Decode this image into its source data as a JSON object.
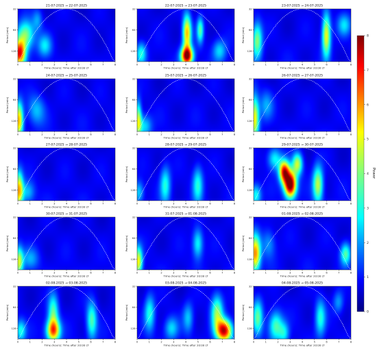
{
  "figure": {
    "colormap": "jet",
    "cone_of_influence": "white-dotted",
    "colorbar": {
      "label": "Power",
      "ticks": [
        "0",
        "1",
        "2",
        "3",
        "4",
        "5",
        "6",
        "7",
        "8"
      ],
      "vmin": 0,
      "vmax": 8,
      "placement": "right"
    }
  },
  "chart_data": [
    {
      "type": "heatmap",
      "title": "21-07-2025 → 22-07-2025",
      "xlabel": "Time (hours): Time after 20:00 LT",
      "ylabel": "Period (min)",
      "xticks": [
        "0",
        "1",
        "2",
        "3",
        "4",
        "5",
        "6",
        "7",
        "8"
      ],
      "yticks": [
        "32",
        "64",
        "128"
      ],
      "xlim": [
        0,
        8
      ],
      "blobs": [
        {
          "x": 0.1,
          "p": 0.85,
          "amp": 6.5,
          "sx": 0.35,
          "sy": 0.35
        },
        {
          "x": 0.6,
          "p": 0.5,
          "amp": 3.5,
          "sx": 0.5,
          "sy": 0.4
        },
        {
          "x": 2.2,
          "p": 0.7,
          "amp": 2,
          "sx": 0.4,
          "sy": 0.3
        },
        {
          "x": 1.6,
          "p": 0.2,
          "amp": 1.5,
          "sx": 0.3,
          "sy": 0.3
        }
      ]
    },
    {
      "type": "heatmap",
      "title": "22-07-2025 → 23-07-2025",
      "xlabel": "Time (hours): Time after 20:00 LT",
      "ylabel": "Period (min)",
      "xticks": [
        "0",
        "1",
        "2",
        "3",
        "4",
        "5",
        "6",
        "7",
        "8"
      ],
      "yticks": [
        "32",
        "64",
        "128"
      ],
      "xlim": [
        0,
        8
      ],
      "blobs": [
        {
          "x": 4.1,
          "p": 0.9,
          "amp": 7.5,
          "sx": 0.35,
          "sy": 0.25
        },
        {
          "x": 4.1,
          "p": 0.45,
          "amp": 5,
          "sx": 0.25,
          "sy": 0.5
        },
        {
          "x": 5.2,
          "p": 0.4,
          "amp": 3,
          "sx": 0.2,
          "sy": 0.35
        },
        {
          "x": 0.3,
          "p": 0.85,
          "amp": 2.5,
          "sx": 0.3,
          "sy": 0.3
        },
        {
          "x": 6.8,
          "p": 0.8,
          "amp": 2,
          "sx": 0.4,
          "sy": 0.3
        }
      ]
    },
    {
      "type": "heatmap",
      "title": "23-07-2025 → 24-07-2025",
      "xlabel": "Time (hours): Time after 20:00 LT",
      "ylabel": "Period (min)",
      "xticks": [
        "0",
        "1",
        "2",
        "3",
        "4",
        "5",
        "6",
        "7",
        "8"
      ],
      "yticks": [
        "32",
        "64",
        "128"
      ],
      "xlim": [
        0,
        8
      ],
      "blobs": [
        {
          "x": 6.0,
          "p": 0.5,
          "amp": 4.5,
          "sx": 0.25,
          "sy": 0.6
        },
        {
          "x": 0.25,
          "p": 0.6,
          "amp": 3.5,
          "sx": 0.3,
          "sy": 0.5
        },
        {
          "x": 7.5,
          "p": 0.3,
          "amp": 2,
          "sx": 0.4,
          "sy": 0.3
        }
      ]
    },
    {
      "type": "heatmap",
      "title": "24-07-2025 → 25-07-2025",
      "xlabel": "Time (hours): Time after 20:00 LT",
      "ylabel": "Period (min)",
      "xticks": [
        "0",
        "1",
        "2",
        "3",
        "4",
        "5",
        "6",
        "7",
        "8"
      ],
      "yticks": [
        "32",
        "64",
        "128"
      ],
      "xlim": [
        0,
        8
      ],
      "blobs": [
        {
          "x": 0.05,
          "p": 0.8,
          "amp": 5,
          "sx": 0.25,
          "sy": 0.5
        },
        {
          "x": 1.5,
          "p": 0.6,
          "amp": 1.8,
          "sx": 0.5,
          "sy": 0.4
        }
      ]
    },
    {
      "type": "heatmap",
      "title": "25-07-2025 → 26-07-2025",
      "xlabel": "Time (hours): Time after 20:00 LT",
      "ylabel": "Period (min)",
      "xticks": [
        "0",
        "1",
        "2",
        "3",
        "4",
        "5",
        "6",
        "7",
        "8"
      ],
      "yticks": [
        "32",
        "64",
        "128"
      ],
      "xlim": [
        0,
        8
      ],
      "blobs": [
        {
          "x": 0.05,
          "p": 0.8,
          "amp": 4,
          "sx": 0.2,
          "sy": 0.5
        },
        {
          "x": 0.6,
          "p": 0.9,
          "amp": 2,
          "sx": 0.4,
          "sy": 0.3
        }
      ]
    },
    {
      "type": "heatmap",
      "title": "26-07-2025 → 27-07-2025",
      "xlabel": "Time (hours): Time after 20:00 LT",
      "ylabel": "Period (min)",
      "xticks": [
        "0",
        "1",
        "2",
        "3",
        "4",
        "5",
        "6",
        "7",
        "8"
      ],
      "yticks": [
        "32",
        "64",
        "128"
      ],
      "xlim": [
        0,
        8
      ],
      "blobs": [
        {
          "x": 0.05,
          "p": 0.75,
          "amp": 4.5,
          "sx": 0.25,
          "sy": 0.6
        },
        {
          "x": 1.0,
          "p": 0.5,
          "amp": 1.5,
          "sx": 0.4,
          "sy": 0.4
        }
      ]
    },
    {
      "type": "heatmap",
      "title": "27-07-2025 → 28-07-2025",
      "xlabel": "Time (hours): Time after 20:00 LT",
      "ylabel": "Period (min)",
      "xticks": [
        "0",
        "1",
        "2",
        "3",
        "4",
        "5",
        "6",
        "7",
        "8"
      ],
      "yticks": [
        "32",
        "64",
        "128"
      ],
      "xlim": [
        0,
        8
      ],
      "blobs": [
        {
          "x": 0.05,
          "p": 0.8,
          "amp": 5,
          "sx": 0.25,
          "sy": 0.5
        },
        {
          "x": 0.8,
          "p": 0.85,
          "amp": 1.8,
          "sx": 0.4,
          "sy": 0.3
        }
      ]
    },
    {
      "type": "heatmap",
      "title": "28-07-2025 → 29-07-2025",
      "xlabel": "Time (hours): Time after 20:00 LT",
      "ylabel": "Period (min)",
      "xticks": [
        "0",
        "1",
        "2",
        "3",
        "4",
        "5",
        "6",
        "7",
        "8"
      ],
      "yticks": [
        "32",
        "64",
        "128"
      ],
      "xlim": [
        0,
        8
      ],
      "blobs": [
        {
          "x": 2.3,
          "p": 0.7,
          "amp": 2.5,
          "sx": 0.3,
          "sy": 0.5
        },
        {
          "x": 5.0,
          "p": 0.7,
          "amp": 2.5,
          "sx": 0.3,
          "sy": 0.5
        },
        {
          "x": 0.1,
          "p": 0.85,
          "amp": 2,
          "sx": 0.3,
          "sy": 0.3
        }
      ]
    },
    {
      "type": "heatmap",
      "title": "29-07-2025 → 30-07-2025",
      "xlabel": "Time (hours): Time after 20:00 LT",
      "ylabel": "Period (min)",
      "xticks": [
        "0",
        "1",
        "2",
        "3",
        "4",
        "5",
        "6",
        "7",
        "8"
      ],
      "yticks": [
        "32",
        "64",
        "128"
      ],
      "xlim": [
        0,
        8
      ],
      "blobs": [
        {
          "x": 3.0,
          "p": 0.7,
          "amp": 8.5,
          "sx": 0.35,
          "sy": 0.35
        },
        {
          "x": 2.5,
          "p": 0.45,
          "amp": 6.5,
          "sx": 0.3,
          "sy": 0.3
        },
        {
          "x": 3.6,
          "p": 0.3,
          "amp": 4,
          "sx": 0.3,
          "sy": 0.3
        },
        {
          "x": 5.3,
          "p": 0.7,
          "amp": 4,
          "sx": 0.3,
          "sy": 0.5
        },
        {
          "x": 0.15,
          "p": 0.9,
          "amp": 2.5,
          "sx": 0.3,
          "sy": 0.3
        },
        {
          "x": 1.7,
          "p": 0.2,
          "amp": 2.5,
          "sx": 0.4,
          "sy": 0.3
        }
      ]
    },
    {
      "type": "heatmap",
      "title": "30-07-2025 → 31-07-2025",
      "xlabel": "Time (hours): Time after 20:00 LT",
      "ylabel": "Period (min)",
      "xticks": [
        "0",
        "1",
        "2",
        "3",
        "4",
        "5",
        "6",
        "7",
        "8"
      ],
      "yticks": [
        "32",
        "64",
        "128"
      ],
      "xlim": [
        0,
        8
      ],
      "blobs": [
        {
          "x": 0.05,
          "p": 0.85,
          "amp": 4,
          "sx": 0.25,
          "sy": 0.4
        },
        {
          "x": 1.0,
          "p": 0.8,
          "amp": 1.5,
          "sx": 0.5,
          "sy": 0.3
        }
      ]
    },
    {
      "type": "heatmap",
      "title": "31-07-2025 → 01-08-2025",
      "xlabel": "Time (hours): Time after 20:00 LT",
      "ylabel": "Period (min)",
      "xticks": [
        "0",
        "1",
        "2",
        "3",
        "4",
        "5",
        "6",
        "7",
        "8"
      ],
      "yticks": [
        "32",
        "64",
        "128"
      ],
      "xlim": [
        0,
        8
      ],
      "blobs": [
        {
          "x": 0.05,
          "p": 0.85,
          "amp": 4.5,
          "sx": 0.25,
          "sy": 0.4
        },
        {
          "x": 5.0,
          "p": 0.5,
          "amp": 2.5,
          "sx": 0.3,
          "sy": 0.4
        }
      ]
    },
    {
      "type": "heatmap",
      "title": "01-08-2025 → 02-08-2025",
      "xlabel": "Time (hours): Time after 20:00 LT",
      "ylabel": "Period (min)",
      "xticks": [
        "0",
        "1",
        "2",
        "3",
        "4",
        "5",
        "6",
        "7",
        "8"
      ],
      "yticks": [
        "32",
        "64",
        "128"
      ],
      "xlim": [
        0,
        8
      ],
      "blobs": [
        {
          "x": 0.1,
          "p": 0.7,
          "amp": 5.5,
          "sx": 0.3,
          "sy": 0.5
        },
        {
          "x": 7.6,
          "p": 0.7,
          "amp": 3,
          "sx": 0.3,
          "sy": 0.3
        },
        {
          "x": 1.2,
          "p": 0.5,
          "amp": 1.5,
          "sx": 0.4,
          "sy": 0.4
        }
      ]
    },
    {
      "type": "heatmap",
      "title": "02-08-2025 → 03-08-2025",
      "xlabel": "Time (hours): Time after 20:00 LT",
      "ylabel": "Period (min)",
      "xticks": [
        "0",
        "1",
        "2",
        "3",
        "4",
        "5",
        "6",
        "7",
        "8"
      ],
      "yticks": [
        "32",
        "64",
        "128"
      ],
      "xlim": [
        0,
        8
      ],
      "blobs": [
        {
          "x": 2.9,
          "p": 0.85,
          "amp": 5.5,
          "sx": 0.4,
          "sy": 0.3
        },
        {
          "x": 2.9,
          "p": 0.5,
          "amp": 3,
          "sx": 0.3,
          "sy": 0.5
        },
        {
          "x": 6.1,
          "p": 0.65,
          "amp": 3,
          "sx": 0.3,
          "sy": 0.5
        },
        {
          "x": 0.2,
          "p": 0.85,
          "amp": 2.5,
          "sx": 0.3,
          "sy": 0.3
        }
      ]
    },
    {
      "type": "heatmap",
      "title": "03-08-2025 → 04-08-2025",
      "xlabel": "Time (hours): Time after 20:00 LT",
      "ylabel": "Period (min)",
      "xticks": [
        "0",
        "1",
        "2",
        "3",
        "4",
        "5",
        "6",
        "7",
        "8"
      ],
      "yticks": [
        "32",
        "64",
        "128"
      ],
      "xlim": [
        0,
        8
      ],
      "blobs": [
        {
          "x": 7.2,
          "p": 0.85,
          "amp": 7,
          "sx": 0.45,
          "sy": 0.3
        },
        {
          "x": 6.6,
          "p": 0.5,
          "amp": 3.5,
          "sx": 0.35,
          "sy": 0.5
        },
        {
          "x": 1.0,
          "p": 0.5,
          "amp": 2.5,
          "sx": 0.3,
          "sy": 0.5
        },
        {
          "x": 2.8,
          "p": 0.8,
          "amp": 2,
          "sx": 0.4,
          "sy": 0.3
        },
        {
          "x": 4.2,
          "p": 0.6,
          "amp": 1.8,
          "sx": 0.3,
          "sy": 0.4
        }
      ]
    },
    {
      "type": "heatmap",
      "title": "04-08-2025 → 05-08-2025",
      "xlabel": "Time (hours): Time after 20:00 LT",
      "ylabel": "Period (min)",
      "xticks": [
        "0",
        "1",
        "2",
        "3",
        "4",
        "5",
        "6",
        "7",
        "8"
      ],
      "yticks": [
        "32",
        "64",
        "128"
      ],
      "xlim": [
        0,
        8
      ],
      "blobs": [
        {
          "x": 0.3,
          "p": 0.6,
          "amp": 3,
          "sx": 0.3,
          "sy": 0.5
        },
        {
          "x": 1.8,
          "p": 0.75,
          "amp": 3,
          "sx": 0.4,
          "sy": 0.4
        },
        {
          "x": 2.5,
          "p": 0.9,
          "amp": 2,
          "sx": 0.3,
          "sy": 0.3
        },
        {
          "x": 5.5,
          "p": 0.6,
          "amp": 2.5,
          "sx": 0.3,
          "sy": 0.5
        },
        {
          "x": 7.0,
          "p": 0.3,
          "amp": 1.5,
          "sx": 0.3,
          "sy": 0.3
        }
      ]
    }
  ]
}
